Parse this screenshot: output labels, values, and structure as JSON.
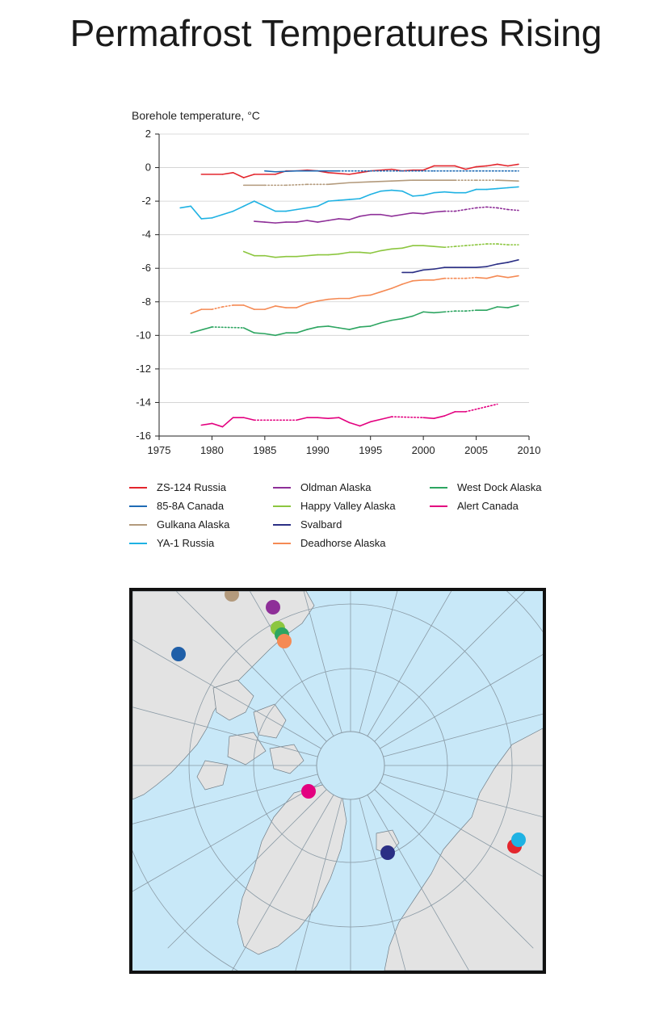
{
  "page": {
    "title": "Permafrost Temperatures Rising"
  },
  "chart_data": {
    "type": "line",
    "title": "Permafrost Temperatures Rising",
    "ylabel": "Borehole temperature, °C",
    "xlabel": "",
    "xlim": [
      1975,
      2010
    ],
    "ylim": [
      -16,
      2
    ],
    "x_ticks": [
      1975,
      1980,
      1985,
      1990,
      1995,
      2000,
      2005,
      2010
    ],
    "y_ticks": [
      2,
      0,
      -2,
      -4,
      -6,
      -8,
      -10,
      -12,
      -14,
      -16
    ],
    "grid": "horizontal",
    "legend_position": "bottom",
    "series": [
      {
        "name": "ZS-124 Russia",
        "color": "#e3262d",
        "x": [
          1979,
          1981,
          1982,
          1983,
          1984,
          1986,
          1987,
          1988,
          1989,
          1990,
          1991,
          1993,
          1994,
          1995,
          1997,
          1998,
          1999,
          2000,
          2001,
          2003,
          2004,
          2005,
          2006,
          2007,
          2008,
          2009
        ],
        "y": [
          -0.4,
          -0.4,
          -0.3,
          -0.6,
          -0.4,
          -0.4,
          -0.2,
          -0.2,
          -0.15,
          -0.2,
          -0.3,
          -0.4,
          -0.3,
          -0.2,
          -0.1,
          -0.2,
          -0.15,
          -0.15,
          0.1,
          0.1,
          -0.1,
          0.05,
          0.1,
          0.2,
          0.1,
          0.2
        ]
      },
      {
        "name": "85-8A Canada",
        "color": "#1f6bb5",
        "x": [
          1985,
          1986,
          1988,
          1990,
          1992,
          1995,
          1998,
          2001,
          2005,
          2009
        ],
        "y": [
          -0.2,
          -0.25,
          -0.2,
          -0.2,
          -0.2,
          -0.2,
          -0.2,
          -0.2,
          -0.2,
          -0.2
        ],
        "dotted_after": 1992
      },
      {
        "name": "Gulkana Alaska",
        "color": "#b39a7c",
        "x": [
          1983,
          1985,
          1987,
          1989,
          1991,
          1993,
          1995,
          1997,
          1999,
          2001,
          2003,
          2005,
          2007,
          2009
        ],
        "y": [
          -1.05,
          -1.05,
          -1.05,
          -1.0,
          -1.0,
          -0.9,
          -0.85,
          -0.8,
          -0.75,
          -0.75,
          -0.75,
          -0.75,
          -0.75,
          -0.8
        ],
        "dotted_ranges": [
          [
            1985,
            1991
          ],
          [
            2003,
            2007
          ]
        ]
      },
      {
        "name": "YA-1 Russia",
        "color": "#1fb2e3",
        "x": [
          1977,
          1978,
          1979,
          1980,
          1981,
          1982,
          1983,
          1984,
          1985,
          1986,
          1987,
          1988,
          1989,
          1990,
          1991,
          1992,
          1993,
          1994,
          1995,
          1996,
          1997,
          1998,
          1999,
          2000,
          2001,
          2002,
          2003,
          2004,
          2005,
          2006,
          2007,
          2008,
          2009
        ],
        "y": [
          -2.4,
          -2.3,
          -3.05,
          -3.0,
          -2.8,
          -2.6,
          -2.3,
          -2.0,
          -2.3,
          -2.6,
          -2.6,
          -2.5,
          -2.4,
          -2.3,
          -2.0,
          -1.95,
          -1.9,
          -1.85,
          -1.6,
          -1.4,
          -1.35,
          -1.4,
          -1.7,
          -1.65,
          -1.5,
          -1.45,
          -1.5,
          -1.5,
          -1.3,
          -1.3,
          -1.25,
          -1.2,
          -1.15
        ]
      },
      {
        "name": "Oldman Alaska",
        "color": "#8e2f98",
        "x": [
          1984,
          1985,
          1986,
          1987,
          1988,
          1989,
          1990,
          1991,
          1992,
          1993,
          1994,
          1995,
          1996,
          1997,
          1998,
          1999,
          2000,
          2001,
          2002,
          2003,
          2004,
          2005,
          2006,
          2007,
          2008,
          2009
        ],
        "y": [
          -3.2,
          -3.25,
          -3.3,
          -3.25,
          -3.25,
          -3.15,
          -3.25,
          -3.15,
          -3.05,
          -3.1,
          -2.9,
          -2.8,
          -2.8,
          -2.9,
          -2.8,
          -2.7,
          -2.75,
          -2.65,
          -2.6,
          -2.6,
          -2.5,
          -2.4,
          -2.35,
          -2.4,
          -2.5,
          -2.55
        ],
        "dotted_after": 2002
      },
      {
        "name": "Happy Valley Alaska",
        "color": "#8cc63f",
        "x": [
          1983,
          1984,
          1985,
          1986,
          1987,
          1988,
          1989,
          1990,
          1991,
          1992,
          1993,
          1994,
          1995,
          1996,
          1997,
          1998,
          1999,
          2000,
          2001,
          2002,
          2003,
          2004,
          2005,
          2006,
          2007,
          2008,
          2009
        ],
        "y": [
          -5.0,
          -5.25,
          -5.25,
          -5.35,
          -5.3,
          -5.3,
          -5.25,
          -5.2,
          -5.2,
          -5.15,
          -5.05,
          -5.05,
          -5.1,
          -4.95,
          -4.85,
          -4.8,
          -4.65,
          -4.65,
          -4.7,
          -4.75,
          -4.7,
          -4.65,
          -4.6,
          -4.55,
          -4.55,
          -4.6,
          -4.6
        ],
        "dotted_after": 2002
      },
      {
        "name": "Svalbard",
        "color": "#2b2f85",
        "x": [
          1998,
          1999,
          2000,
          2001,
          2002,
          2003,
          2004,
          2005,
          2006,
          2007,
          2008,
          2009
        ],
        "y": [
          -6.25,
          -6.25,
          -6.1,
          -6.05,
          -5.95,
          -5.95,
          -5.95,
          -5.95,
          -5.9,
          -5.75,
          -5.65,
          -5.5
        ]
      },
      {
        "name": "Deadhorse Alaska",
        "color": "#f58a54",
        "x": [
          1978,
          1979,
          1980,
          1981,
          1982,
          1983,
          1984,
          1985,
          1986,
          1987,
          1988,
          1989,
          1990,
          1991,
          1992,
          1993,
          1994,
          1995,
          1996,
          1997,
          1998,
          1999,
          2000,
          2001,
          2002,
          2003,
          2004,
          2005,
          2006,
          2007,
          2008,
          2009
        ],
        "y": [
          -8.7,
          -8.45,
          -8.45,
          -8.3,
          -8.2,
          -8.2,
          -8.45,
          -8.45,
          -8.25,
          -8.35,
          -8.35,
          -8.1,
          -7.95,
          -7.85,
          -7.8,
          -7.8,
          -7.65,
          -7.6,
          -7.4,
          -7.2,
          -6.95,
          -6.75,
          -6.7,
          -6.7,
          -6.6,
          -6.6,
          -6.6,
          -6.55,
          -6.6,
          -6.45,
          -6.55,
          -6.45
        ],
        "dotted_ranges": [
          [
            1980,
            1982
          ],
          [
            2002,
            2005
          ]
        ]
      },
      {
        "name": "West Dock Alaska",
        "color": "#2da561",
        "x": [
          1978,
          1980,
          1983,
          1984,
          1985,
          1986,
          1987,
          1988,
          1989,
          1990,
          1991,
          1992,
          1993,
          1994,
          1995,
          1996,
          1997,
          1998,
          1999,
          2000,
          2001,
          2002,
          2003,
          2004,
          2005,
          2006,
          2007,
          2008,
          2009
        ],
        "y": [
          -9.85,
          -9.5,
          -9.55,
          -9.85,
          -9.9,
          -10.0,
          -9.85,
          -9.85,
          -9.65,
          -9.5,
          -9.45,
          -9.55,
          -9.65,
          -9.5,
          -9.45,
          -9.25,
          -9.1,
          -9.0,
          -8.85,
          -8.6,
          -8.65,
          -8.6,
          -8.55,
          -8.55,
          -8.5,
          -8.5,
          -8.3,
          -8.35,
          -8.2
        ],
        "dotted_ranges": [
          [
            1980,
            1983
          ],
          [
            2002,
            2005
          ]
        ]
      },
      {
        "name": "Alert Canada",
        "color": "#e3007f",
        "x": [
          1979,
          1980,
          1981,
          1982,
          1983,
          1984,
          1988,
          1989,
          1990,
          1991,
          1992,
          1993,
          1994,
          1995,
          1996,
          1997,
          2000,
          2001,
          2002,
          2003,
          2004,
          2007
        ],
        "y": [
          -15.35,
          -15.25,
          -15.45,
          -14.9,
          -14.9,
          -15.05,
          -15.05,
          -14.9,
          -14.9,
          -14.95,
          -14.9,
          -15.2,
          -15.4,
          -15.15,
          -15.0,
          -14.85,
          -14.9,
          -14.95,
          -14.8,
          -14.55,
          -14.55,
          -14.1
        ],
        "dotted_ranges": [
          [
            1984,
            1988
          ],
          [
            1997,
            2000
          ],
          [
            2004,
            2007
          ]
        ]
      }
    ]
  },
  "map": {
    "markers": [
      {
        "name": "Gulkana Alaska",
        "color": "#b39a7c"
      },
      {
        "name": "Oldman Alaska",
        "color": "#8e2f98"
      },
      {
        "name": "Happy Valley Alaska",
        "color": "#8cc63f"
      },
      {
        "name": "West Dock Alaska",
        "color": "#2da561"
      },
      {
        "name": "Deadhorse Alaska",
        "color": "#f58a54"
      },
      {
        "name": "85-8A Canada",
        "color": "#1f5fa8"
      },
      {
        "name": "Alert Canada",
        "color": "#e3007f"
      },
      {
        "name": "Svalbard",
        "color": "#2b2f85"
      },
      {
        "name": "ZS-124 Russia",
        "color": "#e3262d"
      },
      {
        "name": "YA-1 Russia",
        "color": "#1fb2e3"
      }
    ],
    "ocean_color": "#c8e8f8",
    "land_color": "#e3e3e3"
  }
}
